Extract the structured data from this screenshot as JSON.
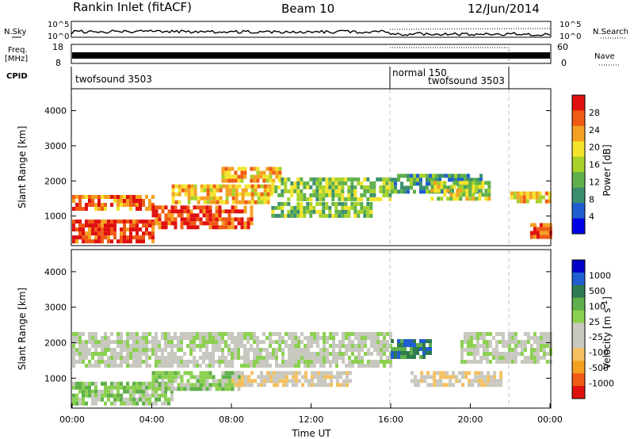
{
  "header": {
    "station": "Rankin Inlet (fitACF)",
    "beam": "Beam 10",
    "date": "12/Jun/2014"
  },
  "strips": {
    "nsky_label": "N.Sky",
    "nsearch_label": "N.Search",
    "freq_label_1": "Freq.",
    "freq_label_2": "[MHz]",
    "nave_label": "Nave",
    "cpid_label": "CPID",
    "noise_ticks": [
      "10^5",
      "10^0"
    ],
    "freq_ticks": [
      "18",
      "8"
    ],
    "nave_ticks": [
      "60",
      "0"
    ],
    "cpid_modes": [
      {
        "label": "twofsound 3503",
        "start": 0,
        "end": 16
      },
      {
        "label": "normal 150",
        "start": 16,
        "end": 22
      },
      {
        "label": "twofsound 3503",
        "start": 16,
        "end": 22
      }
    ]
  },
  "chart_data": [
    {
      "type": "heatmap",
      "name": "power",
      "xlabel": "",
      "ylabel": "Slant Range [km]",
      "xlim": [
        0,
        24
      ],
      "ylim": [
        180,
        4600
      ],
      "yticks": [
        "1000",
        "2000",
        "3000",
        "4000"
      ],
      "colorbar": {
        "label": "Power [dB]",
        "ticks": [
          "28",
          "24",
          "20",
          "16",
          "12",
          "8",
          "4"
        ],
        "range": [
          0,
          30
        ],
        "colors": [
          "#0000e6",
          "#1f5fcf",
          "#3c8f6e",
          "#5fb04a",
          "#a6d22a",
          "#f4e42a",
          "#f4a020",
          "#f05a14",
          "#e01010"
        ]
      },
      "regions": [
        {
          "t0": 0.0,
          "t1": 4.0,
          "r0": 300,
          "r1": 900,
          "level": 27
        },
        {
          "t0": 0.0,
          "t1": 4.0,
          "r0": 1200,
          "r1": 1600,
          "level": 24
        },
        {
          "t0": 4.0,
          "t1": 9.0,
          "r0": 700,
          "r1": 1300,
          "level": 26
        },
        {
          "t0": 5.0,
          "t1": 10.0,
          "r0": 1400,
          "r1": 1900,
          "level": 20
        },
        {
          "t0": 7.5,
          "t1": 10.5,
          "r0": 2000,
          "r1": 2400,
          "level": 21
        },
        {
          "t0": 10.0,
          "t1": 16.0,
          "r0": 1500,
          "r1": 2100,
          "level": 14
        },
        {
          "t0": 10.0,
          "t1": 15.0,
          "r0": 1000,
          "r1": 1400,
          "level": 13
        },
        {
          "t0": 16.0,
          "t1": 20.5,
          "r0": 1700,
          "r1": 2200,
          "level": 10
        },
        {
          "t0": 18.0,
          "t1": 21.0,
          "r0": 1500,
          "r1": 2000,
          "level": 16
        },
        {
          "t0": 22.0,
          "t1": 24.0,
          "r0": 1400,
          "r1": 1700,
          "level": 20
        },
        {
          "t0": 23.0,
          "t1": 24.0,
          "r0": 400,
          "r1": 800,
          "level": 25
        }
      ]
    },
    {
      "type": "heatmap",
      "name": "velocity",
      "xlabel": "Time UT",
      "ylabel": "Slant Range [km]",
      "xlim": [
        0,
        24
      ],
      "ylim": [
        180,
        4600
      ],
      "xticks": [
        "00:00",
        "04:00",
        "08:00",
        "12:00",
        "16:00",
        "20:00",
        "00:00"
      ],
      "yticks": [
        "1000",
        "2000",
        "3000",
        "4000"
      ],
      "colorbar": {
        "label": "Velocity [m s",
        "label_sup": "-1",
        "ticks": [
          "1000",
          "500",
          "100",
          "25",
          "-25",
          "-100",
          "-500",
          "-1000"
        ],
        "range": [
          -1200,
          1200
        ],
        "colors": [
          "#e01010",
          "#f05a14",
          "#f4a020",
          "#f4c060",
          "#c8c8c0",
          "#c8c8c0",
          "#8cd050",
          "#5fb04a",
          "#2f7a50",
          "#1f5fcf",
          "#0000c8"
        ]
      },
      "regions": [
        {
          "t0": 0.0,
          "t1": 5.0,
          "r0": 300,
          "r1": 900,
          "level": 200
        },
        {
          "t0": 4.0,
          "t1": 8.5,
          "r0": 700,
          "r1": 1200,
          "level": 250
        },
        {
          "t0": 8.0,
          "t1": 14.0,
          "r0": 800,
          "r1": 1200,
          "level": -200
        },
        {
          "t0": 0.0,
          "t1": 16.0,
          "r0": 1400,
          "r1": 2300,
          "level": 0
        },
        {
          "t0": 16.0,
          "t1": 18.0,
          "r0": 1600,
          "r1": 2100,
          "level": 700
        },
        {
          "t0": 19.5,
          "t1": 24.0,
          "r0": 1500,
          "r1": 2300,
          "level": 0
        },
        {
          "t0": 17.0,
          "t1": 21.5,
          "r0": 800,
          "r1": 1200,
          "level": -250
        }
      ]
    }
  ]
}
